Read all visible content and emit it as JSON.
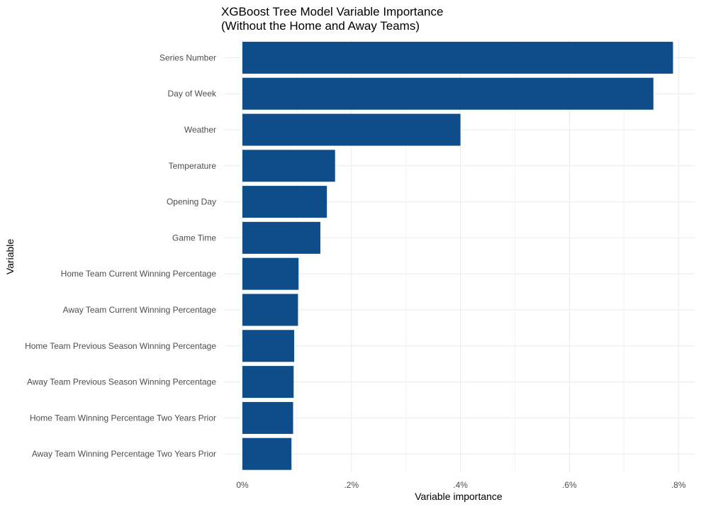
{
  "chart_data": {
    "type": "bar",
    "orientation": "horizontal",
    "title_line1": "XGBoost Tree Model Variable Importance",
    "title_line2": "(Without the Home and Away Teams)",
    "xlabel": "Variable importance",
    "ylabel": "Variable",
    "categories": [
      "Series Number",
      "Day of Week",
      "Weather",
      "Temperature",
      "Opening Day",
      "Game Time",
      "Home Team Current Winning Percentage",
      "Away Team Current Winning Percentage",
      "Home Team Previous Season Winning Percentage",
      "Away Team Previous Season Winning Percentage",
      "Home Team Winning Percentage Two Years Prior",
      "Away Team Winning Percentage Two Years Prior"
    ],
    "values": [
      0.0079,
      0.00754,
      0.004,
      0.0017,
      0.00155,
      0.00143,
      0.00103,
      0.00102,
      0.00095,
      0.00094,
      0.00093,
      0.0009
    ],
    "xlim": [
      0,
      0.0083
    ],
    "ticks": [
      0,
      0.002,
      0.004,
      0.006,
      0.008
    ],
    "tick_labels": [
      "0%",
      ".2%",
      ".4%",
      ".6%",
      ".8%"
    ],
    "bar_color": "#0f4d8a",
    "grid": true,
    "legend": "none"
  }
}
